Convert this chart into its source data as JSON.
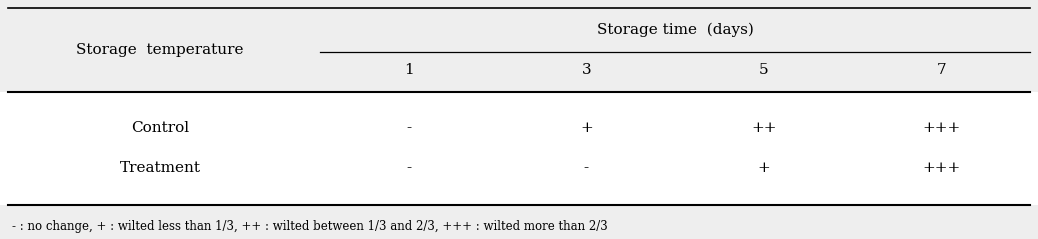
{
  "col_header_main": "Storage time  (days)",
  "col_header_sub": [
    "1",
    "3",
    "5",
    "7"
  ],
  "row_header_label": "Storage  temperature",
  "rows": [
    {
      "label": "Control",
      "values": [
        "-",
        "+",
        "++",
        "+++"
      ]
    },
    {
      "label": "Treatment",
      "values": [
        "-",
        "-",
        "+",
        "+++"
      ]
    }
  ],
  "footnote": "- : no change, + : wilted less than 1/3, ++ : wilted between 1/3 and 2/3, +++ : wilted more than 2/3",
  "bg_color": "#eeeeee",
  "white_color": "#ffffff",
  "text_color": "#000000",
  "font_family": "serif",
  "fig_width": 10.38,
  "fig_height": 2.39,
  "dpi": 100
}
